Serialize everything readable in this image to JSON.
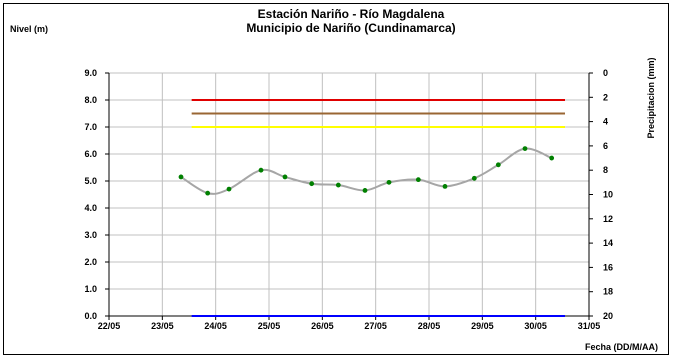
{
  "chart_data": {
    "type": "line",
    "title": "Estación Nariño  - Río Magdalena",
    "subtitle": "Municipio de Nariño (Cundinamarca)",
    "ylabel": "Nivel (m)",
    "xlabel": "Fecha (DD/M/AA)",
    "y2label": "Precipitacion (mm)",
    "x_tick_labels": [
      "22/05",
      "23/05",
      "24/05",
      "25/05",
      "26/05",
      "27/05",
      "28/05",
      "29/05",
      "30/05",
      "31/05"
    ],
    "y_tick_labels": [
      "0.0",
      "1.0",
      "2.0",
      "3.0",
      "4.0",
      "5.0",
      "6.0",
      "7.0",
      "8.0",
      "9.0"
    ],
    "y2_tick_labels": [
      "0",
      "2",
      "4",
      "6",
      "8",
      "10",
      "12",
      "14",
      "16",
      "18",
      "20"
    ],
    "ylim": [
      0,
      9
    ],
    "y2lim": [
      0,
      20
    ],
    "y2_inverted": true,
    "xlim": [
      0,
      9
    ],
    "grid": true,
    "series": [
      {
        "kind": "level",
        "color": "#a6a6a6",
        "marker_color": "#008000",
        "x": [
          1.35,
          1.85,
          2.25,
          2.85,
          3.3,
          3.8,
          4.3,
          4.8,
          5.25,
          5.8,
          6.3,
          6.85,
          7.3,
          7.8,
          8.3
        ],
        "values": [
          5.15,
          4.55,
          4.7,
          5.4,
          5.15,
          4.9,
          4.85,
          4.65,
          4.95,
          5.05,
          4.8,
          5.1,
          5.6,
          6.2,
          5.85
        ]
      },
      {
        "kind": "threshold",
        "color": "#e00000",
        "x": [
          1.55,
          8.55
        ],
        "values": [
          8.0,
          8.0
        ]
      },
      {
        "kind": "threshold",
        "color": "#996633",
        "x": [
          1.55,
          8.55
        ],
        "values": [
          7.5,
          7.5
        ]
      },
      {
        "kind": "threshold",
        "color": "#ffff00",
        "x": [
          1.55,
          8.55
        ],
        "values": [
          7.0,
          7.0
        ]
      },
      {
        "kind": "threshold",
        "color": "#0000ff",
        "x": [
          1.55,
          8.55
        ],
        "values": [
          0.0,
          0.0
        ]
      }
    ]
  },
  "colors": {
    "grid": "#c0c0c0",
    "axis": "#000000",
    "background": "#ffffff"
  }
}
